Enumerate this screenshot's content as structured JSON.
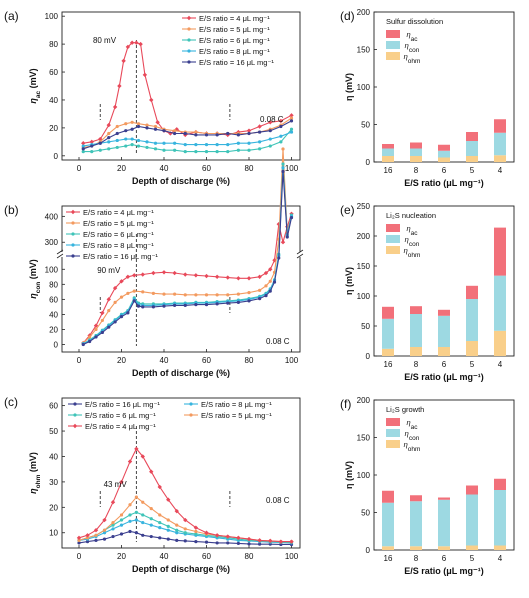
{
  "colors": {
    "r4": "#e8495a",
    "r5": "#f39a5f",
    "r6": "#3fc4b8",
    "r8": "#37b4de",
    "r16": "#3b3f8f",
    "bar_ac": "#f2707a",
    "bar_con": "#9dd9e2",
    "bar_ohm": "#f9cf8a"
  },
  "chart_data": [
    {
      "panel": "(a)",
      "type": "line",
      "xlabel": "Depth of discharge (%)",
      "ylabel": "η",
      "ylabel_sub": "ac",
      "ylabel_unit": " (mV)",
      "xlim": [
        -8,
        104
      ],
      "ylim": [
        -3,
        103
      ],
      "xticks": [
        "0",
        "20",
        "40",
        "60",
        "80",
        "100"
      ],
      "yticks": [
        "0",
        "20",
        "40",
        "60",
        "80",
        "100"
      ],
      "annotations": [
        "80 mV",
        "0.08 C"
      ],
      "dashed_x": [
        10,
        27,
        71
      ],
      "series": [
        {
          "name": "E/S ratio = 4 μL mg⁻¹",
          "color_key": "r4",
          "x": [
            2,
            6,
            10,
            14,
            17,
            19,
            21,
            23,
            25,
            27,
            29,
            31,
            34,
            37,
            40,
            43,
            46,
            50,
            55,
            60,
            65,
            70,
            75,
            80,
            85,
            90,
            95,
            100
          ],
          "y": [
            9,
            10,
            12,
            22,
            35,
            50,
            68,
            78,
            81,
            81,
            80,
            58,
            40,
            24,
            18,
            16,
            19,
            15,
            17,
            16,
            16,
            15,
            17,
            18,
            21,
            24,
            25,
            29
          ]
        },
        {
          "name": "E/S ratio = 5 μL mg⁻¹",
          "color_key": "r5",
          "x": [
            2,
            6,
            10,
            14,
            18,
            22,
            25,
            28,
            32,
            36,
            40,
            45,
            50,
            55,
            60,
            65,
            70,
            75,
            80,
            85,
            90,
            95,
            100
          ],
          "y": [
            6,
            7,
            10,
            16,
            21,
            23,
            24,
            23,
            22,
            21,
            19,
            18,
            17,
            17,
            16,
            16,
            16,
            16,
            16,
            17,
            19,
            22,
            27
          ]
        },
        {
          "name": "E/S ratio = 6 μL mg⁻¹",
          "color_key": "r6",
          "x": [
            2,
            6,
            10,
            14,
            18,
            22,
            25,
            28,
            32,
            36,
            40,
            45,
            50,
            55,
            60,
            65,
            70,
            75,
            80,
            85,
            90,
            95,
            100
          ],
          "y": [
            3,
            3,
            4,
            5,
            6,
            7,
            8,
            7,
            6,
            5,
            4,
            4,
            3,
            3,
            3,
            3,
            3,
            4,
            4,
            5,
            7,
            10,
            19
          ]
        },
        {
          "name": "E/S ratio = 8 μL mg⁻¹",
          "color_key": "r8",
          "x": [
            2,
            6,
            10,
            14,
            18,
            22,
            25,
            28,
            32,
            36,
            40,
            45,
            50,
            55,
            60,
            65,
            70,
            75,
            80,
            85,
            90,
            95,
            100
          ],
          "y": [
            7,
            8,
            9,
            10,
            11,
            12,
            12,
            11,
            10,
            9,
            9,
            9,
            8,
            8,
            8,
            8,
            8,
            9,
            9,
            10,
            12,
            14,
            17
          ]
        },
        {
          "name": "E/S ratio = 16 μL mg⁻¹",
          "color_key": "r16",
          "x": [
            2,
            6,
            10,
            14,
            18,
            22,
            25,
            28,
            32,
            36,
            40,
            45,
            50,
            55,
            60,
            65,
            70,
            75,
            80,
            85,
            90,
            95,
            100
          ],
          "y": [
            5,
            7,
            9,
            13,
            16,
            18,
            19,
            21,
            20,
            19,
            18,
            16,
            16,
            15,
            15,
            15,
            16,
            15,
            16,
            17,
            18,
            21,
            25
          ]
        }
      ]
    },
    {
      "panel": "(b)",
      "type": "line",
      "broken_y": true,
      "xlabel": "Depth of discharge (%)",
      "ylabel": "η",
      "ylabel_sub": "con",
      "ylabel_unit": " (mV)",
      "xlim": [
        -8,
        104
      ],
      "xticks": [
        "0",
        "20",
        "40",
        "60",
        "80",
        "100"
      ],
      "yticks": [
        "0",
        "20",
        "40",
        "60",
        "80",
        "100",
        "300",
        "400"
      ],
      "annotations": [
        "90 mV",
        "0.08 C"
      ],
      "dashed_x": [
        10,
        27,
        71
      ],
      "series": [
        {
          "name": "E/S ratio = 4 μL mg⁻¹",
          "color_key": "r4",
          "x": [
            2,
            5,
            8,
            11,
            14,
            17,
            20,
            23,
            26,
            30,
            35,
            40,
            45,
            50,
            55,
            60,
            65,
            70,
            75,
            80,
            85,
            88,
            90,
            92,
            94,
            96,
            98,
            100
          ],
          "y": [
            2,
            12,
            25,
            42,
            60,
            75,
            84,
            90,
            92,
            93,
            95,
            96,
            95,
            93,
            92,
            91,
            90,
            89,
            88,
            88,
            90,
            95,
            100,
            112,
            160,
            300,
            360,
            410
          ]
        },
        {
          "name": "E/S ratio = 5 μL mg⁻¹",
          "color_key": "r5",
          "x": [
            2,
            5,
            8,
            11,
            14,
            17,
            20,
            23,
            26,
            30,
            35,
            40,
            45,
            50,
            55,
            60,
            65,
            70,
            75,
            80,
            85,
            88,
            90,
            92,
            94,
            96,
            98,
            100
          ],
          "y": [
            2,
            10,
            20,
            32,
            45,
            56,
            63,
            68,
            71,
            70,
            68,
            67,
            67,
            66,
            66,
            66,
            66,
            66,
            67,
            69,
            72,
            78,
            84,
            96,
            140,
            260,
            340,
            400
          ]
        },
        {
          "name": "E/S ratio = 6 μL mg⁻¹",
          "color_key": "r6",
          "x": [
            2,
            5,
            8,
            11,
            14,
            17,
            20,
            23,
            26,
            28,
            30,
            35,
            40,
            45,
            50,
            55,
            60,
            65,
            70,
            75,
            80,
            85,
            88,
            90,
            92,
            94,
            96,
            98,
            100
          ],
          "y": [
            1,
            6,
            12,
            19,
            26,
            33,
            40,
            45,
            62,
            55,
            54,
            54,
            54,
            55,
            55,
            56,
            56,
            57,
            58,
            59,
            61,
            64,
            68,
            74,
            86,
            120,
            240,
            330,
            405
          ]
        },
        {
          "name": "E/S ratio = 8 μL mg⁻¹",
          "color_key": "r8",
          "x": [
            2,
            5,
            8,
            11,
            14,
            17,
            20,
            23,
            26,
            28,
            30,
            35,
            40,
            45,
            50,
            55,
            60,
            65,
            70,
            75,
            80,
            85,
            88,
            90,
            92,
            94,
            96,
            98,
            100
          ],
          "y": [
            1,
            5,
            11,
            18,
            25,
            32,
            39,
            44,
            60,
            53,
            52,
            52,
            53,
            54,
            54,
            55,
            55,
            56,
            57,
            58,
            60,
            63,
            67,
            73,
            85,
            118,
            235,
            325,
            400
          ]
        },
        {
          "name": "E/S ratio = 16 μL mg⁻¹",
          "color_key": "r16",
          "x": [
            2,
            5,
            8,
            11,
            14,
            17,
            20,
            23,
            26,
            28,
            30,
            35,
            40,
            45,
            50,
            55,
            60,
            65,
            70,
            75,
            80,
            85,
            88,
            90,
            92,
            94,
            96,
            98,
            100
          ],
          "y": [
            0,
            4,
            10,
            16,
            23,
            30,
            37,
            42,
            58,
            51,
            50,
            50,
            51,
            52,
            52,
            53,
            53,
            54,
            55,
            56,
            58,
            61,
            65,
            71,
            83,
            115,
            230,
            320,
            395
          ]
        }
      ]
    },
    {
      "panel": "(c)",
      "type": "line",
      "xlabel": "Depth of discharge (%)",
      "ylabel": "η",
      "ylabel_sub": "ohm",
      "ylabel_unit": " (mV)",
      "xlim": [
        -8,
        104
      ],
      "ylim": [
        4,
        63
      ],
      "xticks": [
        "0",
        "20",
        "40",
        "60",
        "80",
        "100"
      ],
      "yticks": [
        "10",
        "20",
        "30",
        "40",
        "50",
        "60"
      ],
      "annotations": [
        "43 mV",
        "0.08 C"
      ],
      "dashed_x": [
        10,
        27,
        71
      ],
      "series": [
        {
          "name": "E/S ratio = 16 μL mg⁻¹",
          "color_key": "r16",
          "x": [
            0,
            4,
            8,
            12,
            16,
            20,
            24,
            27,
            30,
            34,
            38,
            42,
            46,
            50,
            55,
            60,
            65,
            70,
            75,
            80,
            85,
            90,
            95,
            100
          ],
          "y": [
            6,
            6.5,
            7,
            7.5,
            8.5,
            9.5,
            10.5,
            10,
            9,
            8.5,
            8,
            7.5,
            7,
            6.8,
            6.5,
            6.3,
            6,
            6,
            5.8,
            5.6,
            5.5,
            5.5,
            5.4,
            5.4
          ]
        },
        {
          "name": "E/S ratio = 8 μL mg⁻¹",
          "color_key": "r8",
          "x": [
            0,
            4,
            8,
            12,
            16,
            20,
            24,
            27,
            30,
            34,
            38,
            42,
            46,
            50,
            55,
            60,
            65,
            70,
            75,
            80,
            85,
            90,
            95,
            100
          ],
          "y": [
            7,
            7.5,
            8.5,
            10,
            11.5,
            13,
            14.5,
            15,
            14,
            13,
            12,
            11,
            10,
            9.5,
            9,
            8.5,
            8,
            7.5,
            7,
            6.8,
            6.5,
            6.3,
            6.2,
            6
          ]
        },
        {
          "name": "E/S ratio = 6 μL mg⁻¹",
          "color_key": "r6",
          "x": [
            0,
            4,
            8,
            12,
            16,
            20,
            24,
            27,
            30,
            34,
            38,
            42,
            46,
            50,
            55,
            60,
            65,
            70,
            75,
            80,
            85,
            90,
            95,
            100
          ],
          "y": [
            7,
            8,
            9,
            11,
            13,
            15,
            17,
            18,
            17,
            15.5,
            14,
            12.5,
            11,
            10,
            9.5,
            9,
            8.5,
            8,
            7.5,
            7,
            6.8,
            6.5,
            6.3,
            6.2
          ]
        },
        {
          "name": "E/S ratio = 5 μL mg⁻¹",
          "color_key": "r5",
          "x": [
            0,
            4,
            8,
            12,
            16,
            20,
            24,
            27,
            30,
            34,
            38,
            42,
            46,
            50,
            55,
            60,
            65,
            70,
            75,
            80,
            85,
            90,
            95,
            100
          ],
          "y": [
            7,
            8,
            9,
            11,
            14,
            17,
            21,
            24,
            22,
            19.5,
            17,
            15,
            13,
            11.5,
            10.5,
            9.5,
            9,
            8.5,
            8,
            7.5,
            7,
            6.8,
            6.5,
            6.5
          ]
        },
        {
          "name": "E/S ratio = 4 μL mg⁻¹",
          "color_key": "r4",
          "x": [
            0,
            4,
            8,
            12,
            16,
            20,
            24,
            27,
            30,
            34,
            38,
            42,
            46,
            50,
            55,
            60,
            65,
            70,
            75,
            80,
            85,
            90,
            95,
            100
          ],
          "y": [
            8,
            9,
            11,
            15,
            22,
            30,
            38,
            43,
            40,
            34,
            28,
            23,
            18.5,
            15,
            12,
            10,
            9,
            8.5,
            8,
            7.5,
            7,
            6.8,
            6.5,
            6.5
          ]
        }
      ]
    },
    {
      "panel": "(d)",
      "type": "bar",
      "stacked": true,
      "title": "Sulfur dissolution",
      "categories": [
        "16",
        "8",
        "6",
        "5",
        "4"
      ],
      "xlabel": "E/S ratio (μL mg⁻¹)",
      "ylabel": "η (mV)",
      "ylim": [
        0,
        200
      ],
      "yticks": [
        "0",
        "50",
        "100",
        "150",
        "200"
      ],
      "series": [
        {
          "name": "η",
          "sub": "ohm",
          "color_key": "bar_ohm",
          "values": [
            8,
            8,
            6,
            8,
            9
          ]
        },
        {
          "name": "η",
          "sub": "con",
          "color_key": "bar_con",
          "values": [
            10,
            10,
            9,
            20,
            30
          ]
        },
        {
          "name": "η",
          "sub": "ac",
          "color_key": "bar_ac",
          "values": [
            6,
            8,
            8,
            12,
            18
          ]
        }
      ]
    },
    {
      "panel": "(e)",
      "type": "bar",
      "stacked": true,
      "title": "Li₂S nucleation",
      "categories": [
        "16",
        "8",
        "6",
        "5",
        "4"
      ],
      "xlabel": "E/S ratio (μL mg⁻¹)",
      "ylabel": "η (mV)",
      "ylim": [
        0,
        250
      ],
      "yticks": [
        "0",
        "50",
        "100",
        "150",
        "200",
        "250"
      ],
      "series": [
        {
          "name": "η",
          "sub": "ohm",
          "color_key": "bar_ohm",
          "values": [
            12,
            15,
            15,
            25,
            42
          ]
        },
        {
          "name": "η",
          "sub": "con",
          "color_key": "bar_con",
          "values": [
            50,
            55,
            52,
            70,
            92
          ]
        },
        {
          "name": "η",
          "sub": "ac",
          "color_key": "bar_ac",
          "values": [
            20,
            13,
            10,
            22,
            80
          ]
        }
      ]
    },
    {
      "panel": "(f)",
      "type": "bar",
      "stacked": true,
      "title": "Li₂S growth",
      "categories": [
        "16",
        "8",
        "6",
        "5",
        "4"
      ],
      "xlabel": "E/S ratio (μL mg⁻¹)",
      "ylabel": "η (mV)",
      "ylim": [
        0,
        200
      ],
      "yticks": [
        "0",
        "50",
        "100",
        "150",
        "200"
      ],
      "series": [
        {
          "name": "η",
          "sub": "ohm",
          "color_key": "bar_ohm",
          "values": [
            5,
            5,
            5,
            6,
            6
          ]
        },
        {
          "name": "η",
          "sub": "con",
          "color_key": "bar_con",
          "values": [
            58,
            60,
            62,
            68,
            74
          ]
        },
        {
          "name": "η",
          "sub": "ac",
          "color_key": "bar_ac",
          "values": [
            16,
            8,
            3,
            12,
            15
          ]
        }
      ]
    }
  ]
}
